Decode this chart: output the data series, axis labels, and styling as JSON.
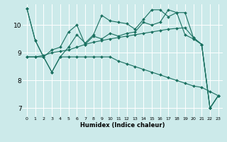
{
  "xlabel": "Humidex (Indice chaleur)",
  "bg_color": "#cceaea",
  "line_color": "#1a7060",
  "grid_color": "#ffffff",
  "xlim": [
    -0.5,
    23.5
  ],
  "ylim": [
    6.7,
    10.75
  ],
  "yticks": [
    7,
    8,
    9,
    10
  ],
  "xticks": [
    0,
    1,
    2,
    3,
    4,
    5,
    6,
    7,
    8,
    9,
    10,
    11,
    12,
    13,
    14,
    15,
    16,
    17,
    18,
    19,
    20,
    21,
    22,
    23
  ],
  "series": [
    [
      10.6,
      9.45,
      8.85,
      8.3,
      8.85,
      9.2,
      9.65,
      9.35,
      9.65,
      10.35,
      10.15,
      10.1,
      10.05,
      9.85,
      10.2,
      10.55,
      10.55,
      10.3,
      10.45,
      10.45,
      9.55,
      9.3,
      7.0,
      7.45
    ],
    [
      10.6,
      9.45,
      8.85,
      9.1,
      9.2,
      9.75,
      10.0,
      9.3,
      9.6,
      9.5,
      9.7,
      9.6,
      9.7,
      9.75,
      10.1,
      10.0,
      10.1,
      10.55,
      10.45,
      9.65,
      9.5,
      9.3,
      7.0,
      7.45
    ],
    [
      8.85,
      8.85,
      8.85,
      8.3,
      8.85,
      8.85,
      8.85,
      8.85,
      8.85,
      8.85,
      8.85,
      8.7,
      8.6,
      8.5,
      8.4,
      8.3,
      8.2,
      8.1,
      8.0,
      7.9,
      7.8,
      7.75,
      7.6,
      7.45
    ],
    [
      8.85,
      8.85,
      8.9,
      9.0,
      9.05,
      9.1,
      9.2,
      9.3,
      9.38,
      9.44,
      9.5,
      9.55,
      9.6,
      9.65,
      9.7,
      9.75,
      9.8,
      9.85,
      9.88,
      9.9,
      9.55,
      9.3,
      7.0,
      7.45
    ]
  ]
}
